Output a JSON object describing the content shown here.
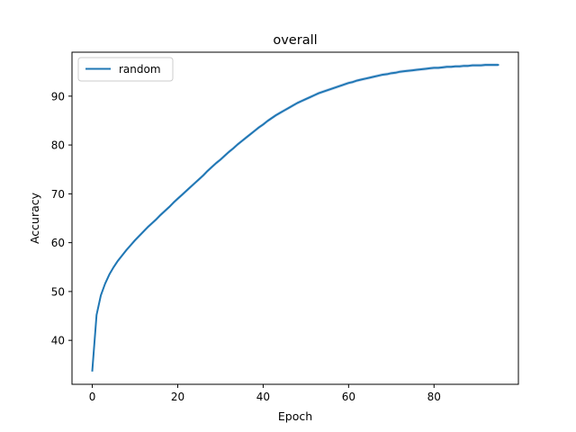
{
  "chart_data": {
    "type": "line",
    "title": "overall",
    "xlabel": "Epoch",
    "ylabel": "Accuracy",
    "xlim": [
      -4.75,
      99.75
    ],
    "ylim": [
      31,
      99
    ],
    "xticks": [
      0,
      20,
      40,
      60,
      80
    ],
    "yticks": [
      40,
      50,
      60,
      70,
      80,
      90
    ],
    "grid": false,
    "legend": "upper left",
    "series": [
      {
        "name": "random",
        "color": "#1f77b4",
        "band_color": "#aec7e8",
        "x": [
          0,
          1,
          2,
          3,
          4,
          5,
          6,
          7,
          8,
          9,
          10,
          11,
          12,
          13,
          14,
          15,
          16,
          17,
          18,
          19,
          20,
          21,
          22,
          23,
          24,
          25,
          26,
          27,
          28,
          29,
          30,
          31,
          32,
          33,
          34,
          35,
          36,
          37,
          38,
          39,
          40,
          41,
          42,
          43,
          44,
          45,
          46,
          47,
          48,
          49,
          50,
          51,
          52,
          53,
          54,
          55,
          56,
          57,
          58,
          59,
          60,
          61,
          62,
          63,
          64,
          65,
          66,
          67,
          68,
          69,
          70,
          71,
          72,
          73,
          74,
          75,
          76,
          77,
          78,
          79,
          80,
          81,
          82,
          83,
          84,
          85,
          86,
          87,
          88,
          89,
          90,
          91,
          92,
          93,
          94,
          95
        ],
        "values": [
          33.8,
          45.2,
          49.2,
          51.6,
          53.5,
          55.0,
          56.3,
          57.4,
          58.5,
          59.5,
          60.5,
          61.4,
          62.3,
          63.2,
          64.0,
          64.8,
          65.7,
          66.5,
          67.3,
          68.2,
          69.0,
          69.8,
          70.6,
          71.4,
          72.2,
          73.0,
          73.8,
          74.7,
          75.5,
          76.3,
          77.0,
          77.8,
          78.6,
          79.3,
          80.1,
          80.8,
          81.5,
          82.2,
          82.9,
          83.6,
          84.2,
          84.9,
          85.5,
          86.1,
          86.6,
          87.1,
          87.6,
          88.1,
          88.6,
          89.0,
          89.4,
          89.8,
          90.2,
          90.6,
          90.9,
          91.2,
          91.5,
          91.8,
          92.1,
          92.4,
          92.7,
          92.9,
          93.2,
          93.4,
          93.6,
          93.8,
          94.0,
          94.2,
          94.4,
          94.5,
          94.7,
          94.8,
          95.0,
          95.1,
          95.2,
          95.3,
          95.4,
          95.5,
          95.6,
          95.7,
          95.8,
          95.8,
          95.9,
          96.0,
          96.0,
          96.1,
          96.1,
          96.2,
          96.2,
          96.3,
          96.3,
          96.3,
          96.4,
          96.4,
          96.4,
          96.4
        ],
        "band": 0.35
      }
    ]
  }
}
